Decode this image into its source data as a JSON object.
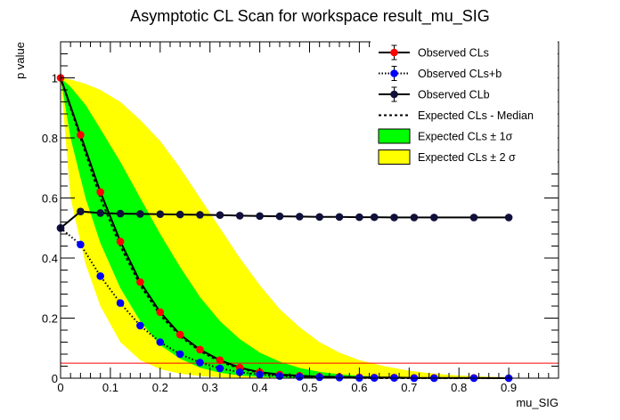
{
  "chart_data": {
    "type": "line",
    "title": "Asymptotic CL Scan for workspace result_mu_SIG",
    "xlabel": "mu_SIG",
    "ylabel": "p value",
    "xlim": [
      0,
      1.0
    ],
    "ylim": [
      0,
      1.12
    ],
    "x_ticks": [
      "0",
      "0.1",
      "0.2",
      "0.3",
      "0.4",
      "0.5",
      "0.6",
      "0.7",
      "0.8",
      "0.9"
    ],
    "y_ticks": [
      "0",
      "0.2",
      "0.4",
      "0.6",
      "0.8",
      "1"
    ],
    "grid": false,
    "legend_position": "top-right",
    "reference_line": {
      "y": 0.05,
      "color": "#ff0000"
    },
    "colors": {
      "observed_cls": "#ff0000",
      "observed_clsb": "#0000ff",
      "observed_clb": "#000000",
      "band_1sigma": "#00ff00",
      "band_2sigma": "#ffff00"
    },
    "legend": [
      {
        "label": "Observed CLs",
        "style": "line-red-marker"
      },
      {
        "label": "Observed CLs+b",
        "style": "dotted-blue-marker"
      },
      {
        "label": "Observed CLb",
        "style": "line-dark-marker"
      },
      {
        "label": "Expected CLs - Median",
        "style": "dashed"
      },
      {
        "label": "Expected CLs ± 1σ",
        "style": "box-green"
      },
      {
        "label": "Expected CLs ± 2 σ",
        "style": "box-yellow"
      }
    ],
    "x": [
      0,
      0.04,
      0.08,
      0.12,
      0.16,
      0.2,
      0.24,
      0.28,
      0.32,
      0.36,
      0.4,
      0.44,
      0.48,
      0.52,
      0.56,
      0.6,
      0.63,
      0.67,
      0.71,
      0.75,
      0.83,
      0.9
    ],
    "series": [
      {
        "name": "Observed CLs",
        "values": [
          1.0,
          0.81,
          0.62,
          0.455,
          0.32,
          0.22,
          0.145,
          0.095,
          0.06,
          0.035,
          0.02,
          0.012,
          0.008,
          0.005,
          0.004,
          0.003,
          0.002,
          0.002,
          0.001,
          0.001,
          0.001,
          0.0
        ]
      },
      {
        "name": "Observed CLs+b",
        "values": [
          0.5,
          0.445,
          0.34,
          0.25,
          0.175,
          0.12,
          0.08,
          0.052,
          0.033,
          0.02,
          0.012,
          0.007,
          0.004,
          0.003,
          0.002,
          0.001,
          0.001,
          0.001,
          0.0,
          0.0,
          0.0,
          0.0
        ]
      },
      {
        "name": "Observed CLb",
        "values": [
          0.5,
          0.555,
          0.55,
          0.548,
          0.547,
          0.546,
          0.545,
          0.544,
          0.543,
          0.541,
          0.54,
          0.539,
          0.538,
          0.537,
          0.537,
          0.536,
          0.536,
          0.535,
          0.535,
          0.535,
          0.535,
          0.535
        ]
      }
    ],
    "expected": {
      "x": [
        0,
        0.02,
        0.05,
        0.08,
        0.12,
        0.16,
        0.2,
        0.24,
        0.28,
        0.32,
        0.36,
        0.4,
        0.44,
        0.48,
        0.52,
        0.56,
        0.6,
        0.65,
        0.7,
        0.75,
        0.8,
        0.85,
        0.9
      ],
      "median": [
        1.0,
        0.9,
        0.75,
        0.6,
        0.44,
        0.31,
        0.21,
        0.14,
        0.09,
        0.055,
        0.032,
        0.018,
        0.01,
        0.006,
        0.003,
        0.002,
        0.001,
        0.0,
        0.0,
        0.0,
        0.0,
        0.0,
        0.0
      ],
      "minus2": [
        1.0,
        0.6,
        0.38,
        0.24,
        0.12,
        0.06,
        0.03,
        0.015,
        0.007,
        0.003,
        0.001,
        0.0,
        0.0,
        0.0,
        0.0,
        0.0,
        0.0,
        0.0,
        0.0,
        0.0,
        0.0,
        0.0,
        0.0
      ],
      "minus1": [
        1.0,
        0.8,
        0.6,
        0.45,
        0.3,
        0.19,
        0.11,
        0.065,
        0.035,
        0.018,
        0.009,
        0.004,
        0.002,
        0.001,
        0.0,
        0.0,
        0.0,
        0.0,
        0.0,
        0.0,
        0.0,
        0.0,
        0.0
      ],
      "plus1": [
        1.0,
        0.97,
        0.91,
        0.83,
        0.72,
        0.6,
        0.48,
        0.37,
        0.27,
        0.19,
        0.13,
        0.085,
        0.055,
        0.034,
        0.021,
        0.013,
        0.008,
        0.004,
        0.002,
        0.001,
        0.0,
        0.0,
        0.0
      ],
      "plus2": [
        1.0,
        0.995,
        0.98,
        0.96,
        0.92,
        0.86,
        0.79,
        0.7,
        0.6,
        0.5,
        0.4,
        0.31,
        0.23,
        0.17,
        0.12,
        0.085,
        0.06,
        0.04,
        0.025,
        0.015,
        0.009,
        0.005,
        0.003
      ]
    }
  }
}
